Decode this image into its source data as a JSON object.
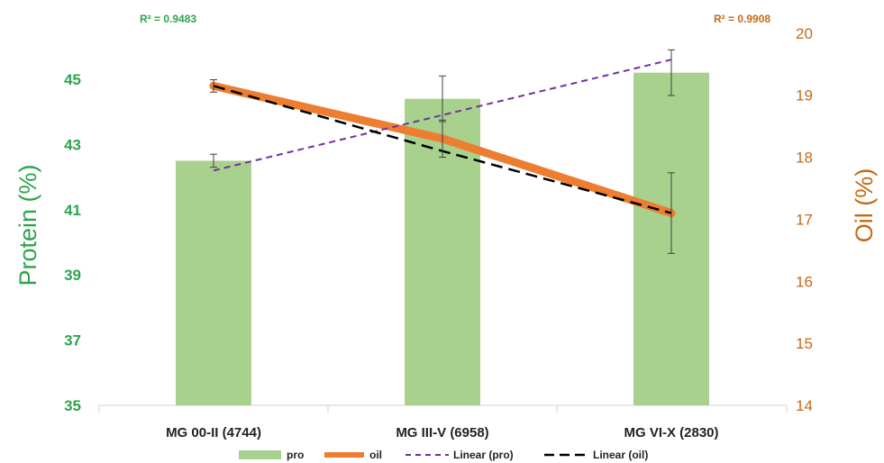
{
  "chart_data": {
    "type": "bar",
    "categories": [
      "MG 00-II (4744)",
      "MG III-V (6958)",
      "MG VI-X (2830)"
    ],
    "series": [
      {
        "name": "pro",
        "type": "bar",
        "axis": "left",
        "values": [
          42.5,
          44.4,
          45.2
        ],
        "error": [
          0.2,
          0.7,
          0.7
        ],
        "color": "#a9d18e"
      },
      {
        "name": "oil",
        "type": "line",
        "axis": "right",
        "values": [
          19.15,
          18.3,
          17.1
        ],
        "error": [
          0.1,
          0.3,
          0.65
        ],
        "color": "#ed7d31"
      },
      {
        "name": "Linear (pro)",
        "type": "trend",
        "axis": "left",
        "values": [
          42.2,
          43.9,
          45.6
        ],
        "color": "#7030a0"
      },
      {
        "name": "Linear (oil)",
        "type": "trend",
        "axis": "right",
        "values": [
          19.15,
          18.1,
          17.1
        ],
        "color": "#000000"
      }
    ],
    "ylabel": "Protein (%)",
    "ylabel_right": "Oil (%)",
    "ylim": [
      35,
      46.6
    ],
    "ylim_right": [
      14,
      20.1
    ],
    "yticks": [
      "35",
      "37",
      "39",
      "41",
      "43",
      "45"
    ],
    "yticks_right": [
      "14",
      "15",
      "16",
      "17",
      "18",
      "19",
      "20"
    ],
    "annotations": [
      {
        "text": "R² = 0.9483",
        "color": "#2ea44f"
      },
      {
        "text": "R² = 0.9908",
        "color": "#c46a14"
      }
    ],
    "legend_position": "bottom",
    "grid": false
  }
}
